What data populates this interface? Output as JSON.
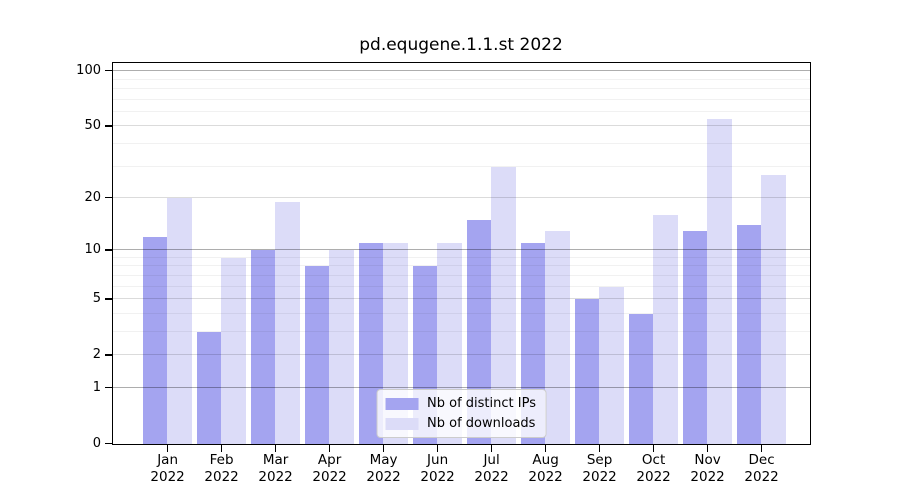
{
  "chart_data": {
    "type": "bar",
    "title": "pd.equgene.1.1.st 2022",
    "categories": [
      "Jan 2022",
      "Feb 2022",
      "Mar 2022",
      "Apr 2022",
      "May 2022",
      "Jun 2022",
      "Jul 2022",
      "Aug 2022",
      "Sep 2022",
      "Oct 2022",
      "Nov 2022",
      "Dec 2022"
    ],
    "series": [
      {
        "name": "Nb of distinct IPs",
        "color": "#a4a4f0",
        "values": [
          12,
          3,
          10,
          8,
          11,
          8,
          15,
          11,
          5,
          4,
          13,
          14
        ]
      },
      {
        "name": "Nb of downloads",
        "color": "#dcdcf8",
        "values": [
          20,
          9,
          19,
          10,
          11,
          11,
          30,
          13,
          6,
          16,
          55,
          27
        ]
      }
    ],
    "xlabel": "",
    "ylabel": "",
    "yscale": "log1p",
    "ylim": [
      0,
      110
    ],
    "y_ticks": [
      0,
      1,
      2,
      5,
      10,
      20,
      50,
      100
    ],
    "y_minor_ticks": [
      3,
      4,
      6,
      7,
      8,
      9,
      30,
      40,
      60,
      70,
      80,
      90
    ],
    "grid": true,
    "legend_position": "lower center"
  }
}
